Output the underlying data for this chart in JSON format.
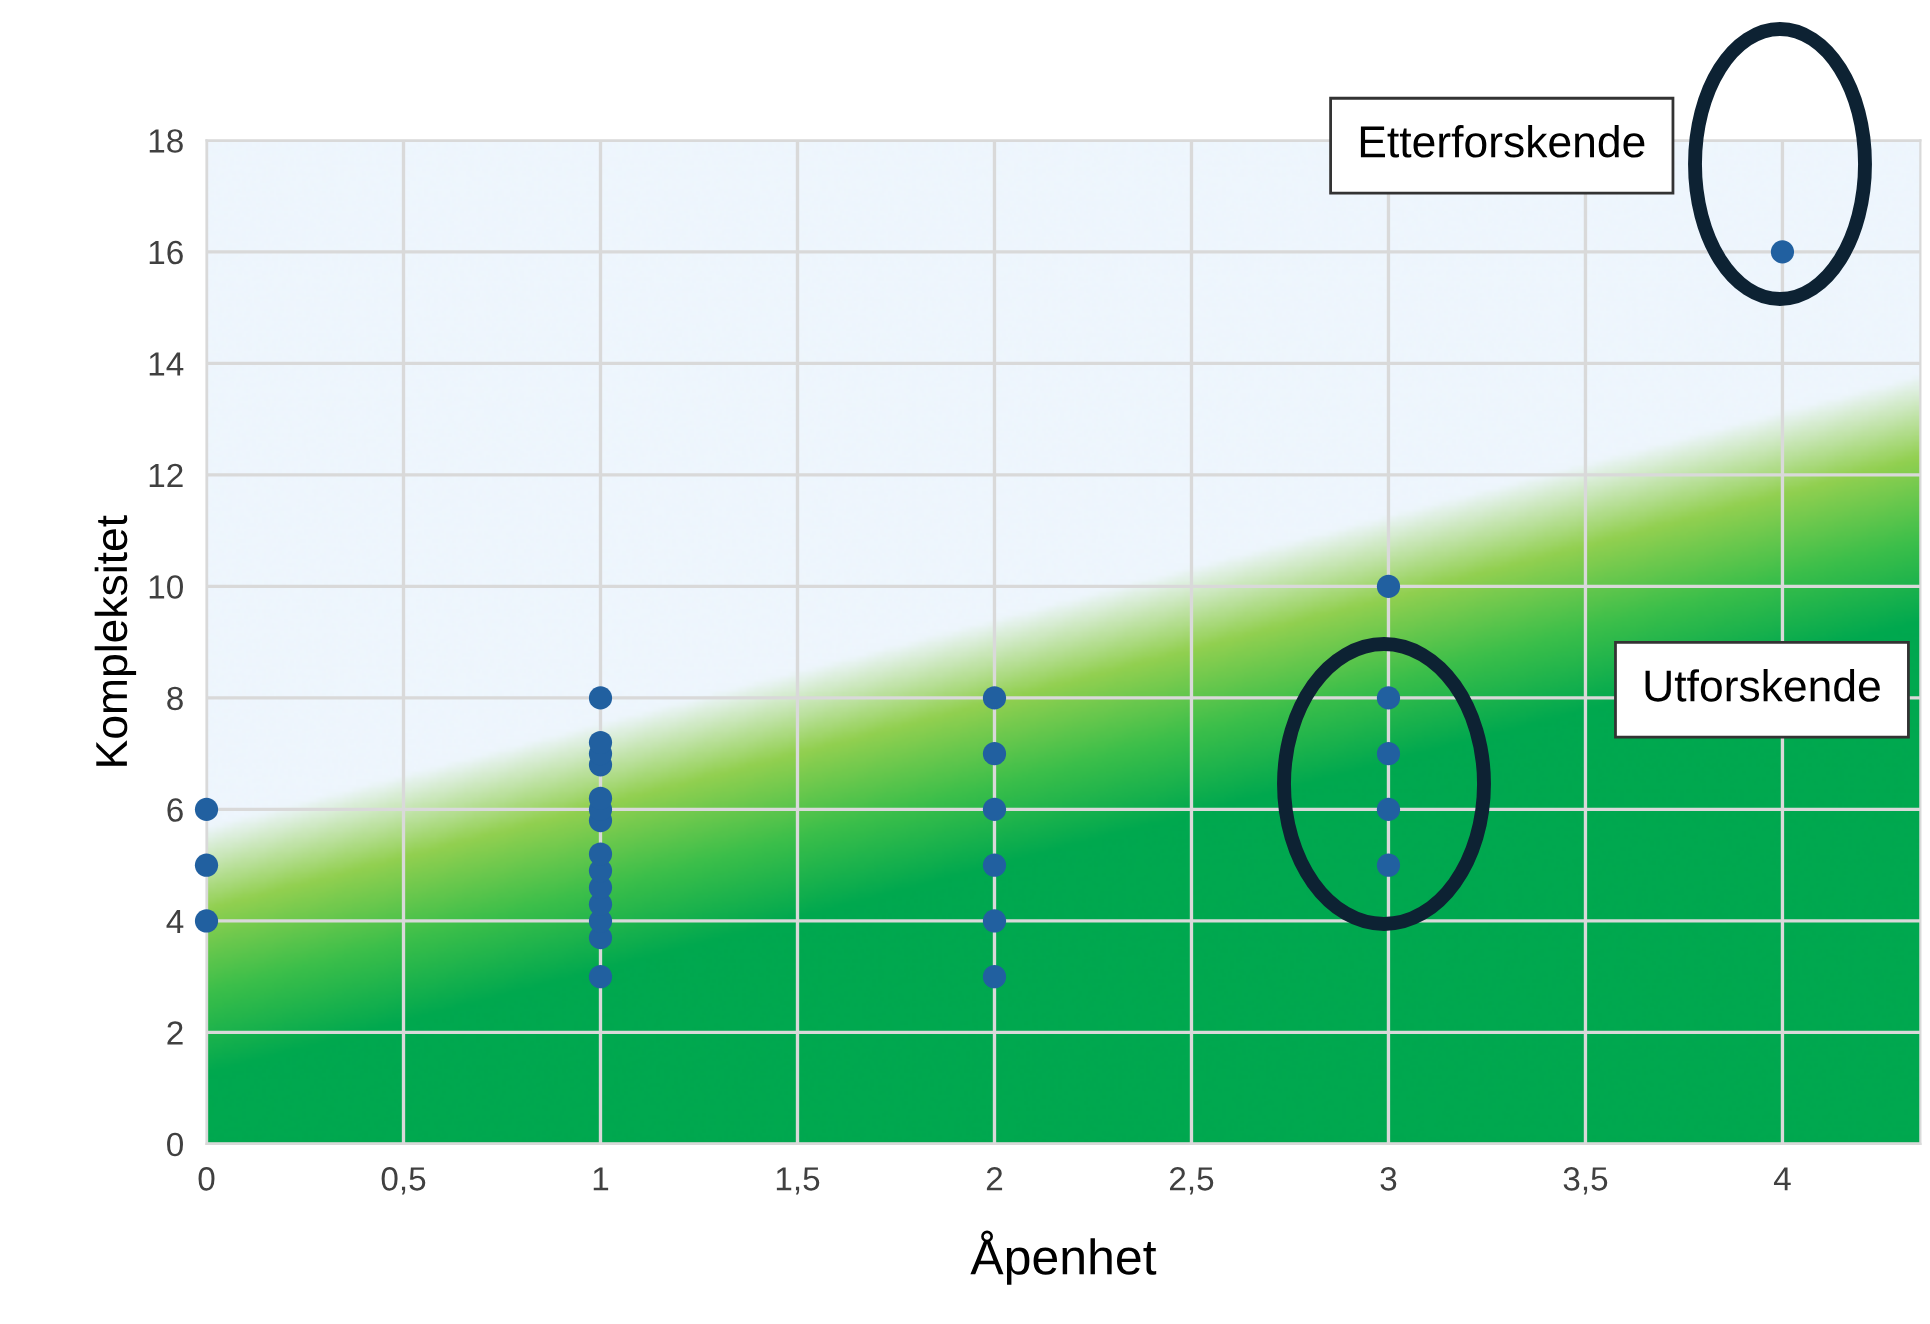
{
  "chart_data": {
    "type": "scatter",
    "xlabel": "Åpenhet",
    "ylabel": "Kompleksitet",
    "series": [
      {
        "color": "#2160a0",
        "x": [
          0,
          0,
          0,
          1,
          1,
          1,
          1,
          1,
          1,
          1,
          1,
          1,
          1,
          1,
          1,
          1,
          1,
          2,
          2,
          2,
          2,
          2,
          2,
          3,
          3,
          3,
          3,
          3,
          4
        ],
        "values": [
          4,
          5,
          6,
          3,
          3.7,
          4,
          4.3,
          4.6,
          4.9,
          5.2,
          5.8,
          6,
          6.2,
          6.8,
          7,
          7.2,
          8,
          3,
          4,
          5,
          6,
          7,
          8,
          5,
          6,
          7,
          8,
          10,
          16
        ]
      }
    ],
    "xlim": [
      0,
      4.35
    ],
    "ylim": [
      0,
      18
    ],
    "xticks": [
      0,
      {
        "value": 0.5,
        "label": "0,5"
      },
      1,
      {
        "value": 1.5,
        "label": "1,5"
      },
      2,
      {
        "value": 2.5,
        "label": "2,5"
      },
      3,
      {
        "value": 3.5,
        "label": "3,5"
      },
      4
    ],
    "yticks": [
      0,
      2,
      4,
      6,
      8,
      10,
      12,
      14,
      16,
      18
    ],
    "grid": true,
    "marker": "circle",
    "annotations": [
      "Etterforskende",
      "Utforskende"
    ]
  }
}
